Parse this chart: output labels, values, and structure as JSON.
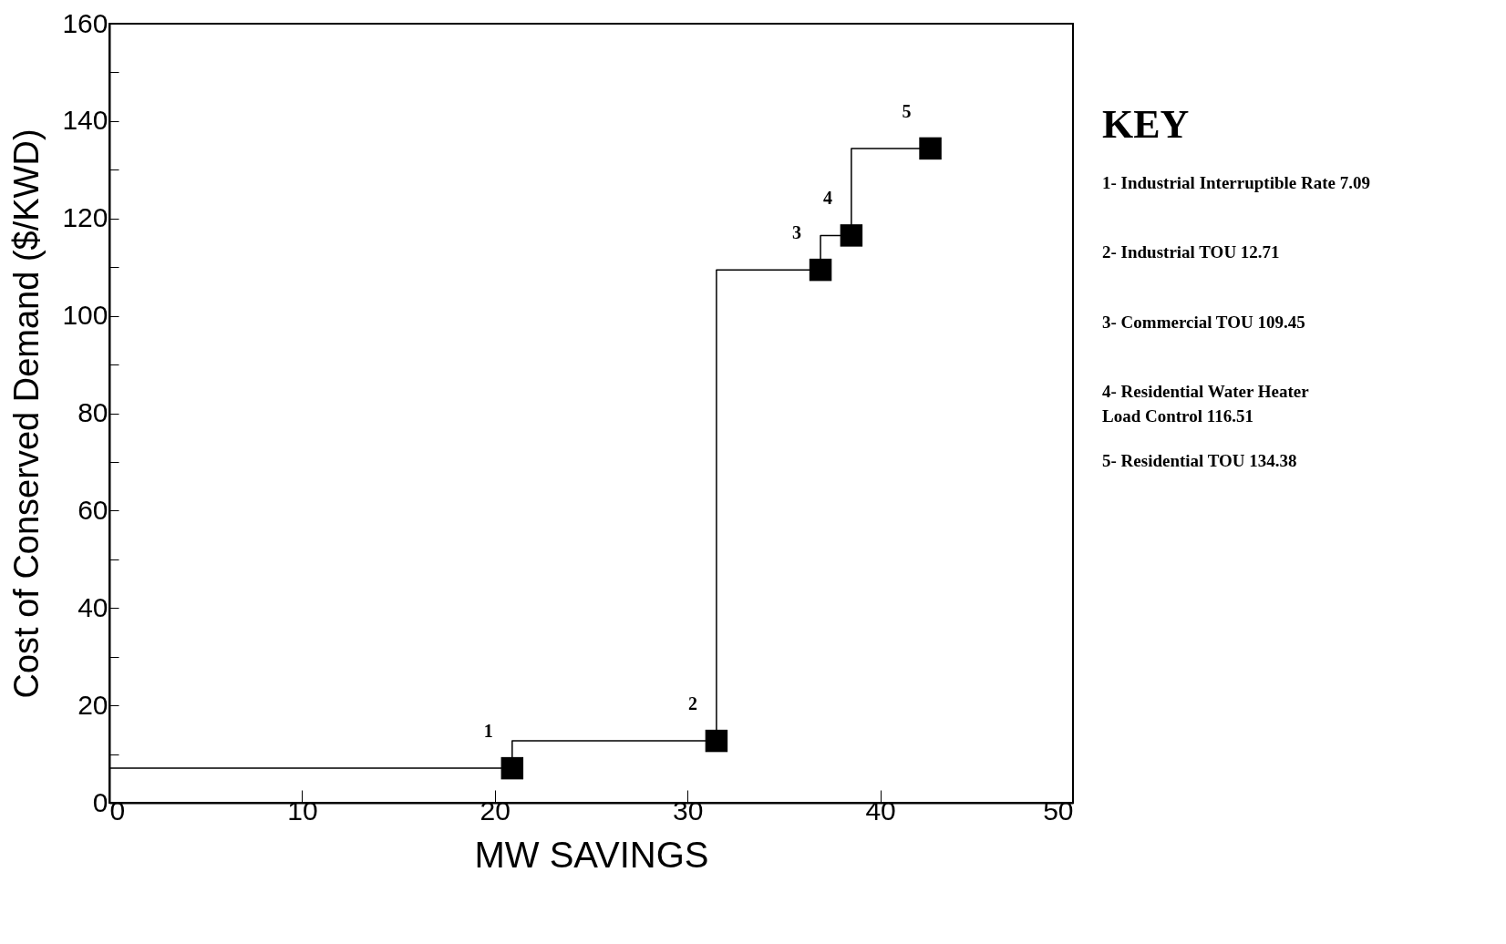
{
  "chart_data": {
    "type": "step",
    "xlabel": "MW SAVINGS",
    "ylabel": "Cost of Conserved Demand ($/KWD)",
    "xlim": [
      0,
      50
    ],
    "xticks": [
      0,
      10,
      20,
      30,
      40,
      50
    ],
    "ylim": [
      0,
      160
    ],
    "yticks": [
      0,
      {
        "value": 10,
        "label": null
      },
      20,
      {
        "value": 30,
        "label": null
      },
      40,
      {
        "value": 50,
        "label": null
      },
      60,
      {
        "value": 70,
        "label": null
      },
      80,
      {
        "value": 90,
        "label": null
      },
      100,
      {
        "value": 110,
        "label": null
      },
      120,
      {
        "value": 130,
        "label": null
      },
      140,
      {
        "value": 150,
        "label": null
      },
      160
    ],
    "grid": false,
    "legend": false,
    "series": [
      {
        "color": "#000000",
        "marker": "none",
        "x": [
          0,
          20.9,
          31.5,
          36.9,
          38.5,
          42.6
        ],
        "values": [
          7.09,
          7.09,
          12.71,
          109.45,
          116.51,
          134.38
        ]
      },
      {
        "type": "scatter",
        "color": "#000000",
        "marker": "square",
        "x": [
          20.9,
          31.5,
          36.9,
          38.5,
          42.6
        ],
        "values": [
          7.09,
          12.71,
          109.45,
          116.51,
          134.38
        ]
      }
    ],
    "annotations": [
      {
        "text": "1",
        "x": 20.9,
        "y": 7.09
      },
      {
        "text": "2",
        "x": 31.5,
        "y": 12.71
      },
      {
        "text": "3",
        "x": 36.9,
        "y": 109.45
      },
      {
        "text": "4",
        "x": 38.5,
        "y": 116.51
      },
      {
        "text": "5",
        "x": 42.6,
        "y": 134.38
      },
      "KEY",
      "1- Industrial Interruptible Rate  7.09",
      "2- Industrial TOU  12.71",
      "3- Commercial TOU  109.45",
      "4- Residential Water Heater\n     Load Control  116.51",
      "5- Residential TOU 134.38"
    ]
  }
}
